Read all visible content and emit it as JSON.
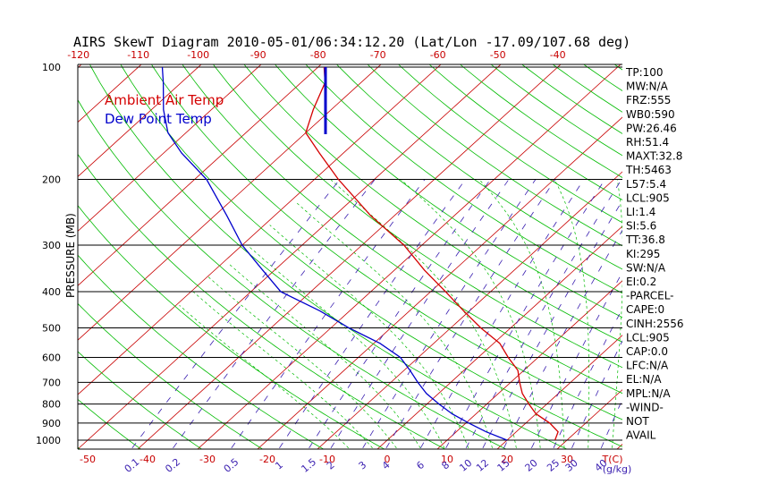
{
  "title": "AIRS SkewT Diagram 2010-05-01/06:34:12.20 (Lat/Lon -17.09/107.68 deg)",
  "colors": {
    "temp": "#d40000",
    "dew": "#0000cc",
    "isotherm": "#c80000",
    "dry_adiabat": "#00bb00",
    "moist_adiabat": "#00bb00",
    "mixing_ratio": "#3a1fb0",
    "isobar": "#000000",
    "tick_red": "#c80000"
  },
  "chart_data": {
    "type": "line",
    "subtype": "skew-t log-p",
    "ylabel": "PRESSURE (MB)",
    "y_scale": "log",
    "ylim": [
      1050,
      100
    ],
    "xlim_at_1000mb": [
      -53,
      33
    ],
    "isobars": [
      100,
      200,
      300,
      400,
      500,
      600,
      700,
      800,
      900,
      1000
    ],
    "y_tick_labels": [
      "100",
      "200",
      "300",
      "400",
      "500",
      "600",
      "700",
      "800",
      "900",
      "1000"
    ],
    "top_ticks": [
      "-120",
      "-110",
      "-100",
      "-90",
      "-80",
      "-70",
      "-60",
      "-50",
      "-40"
    ],
    "bottom_temp_ticks": [
      "-50",
      "-40",
      "-30",
      "-20",
      "-10",
      "0",
      "10",
      "20",
      "30"
    ],
    "bottom_temp_unit": "T(C)",
    "mixing_ratio_ticks": [
      "0.1",
      "0.2",
      "0.5",
      "1",
      "1.5",
      "2",
      "3",
      "4",
      "6",
      "8",
      "10",
      "12",
      "15",
      "20",
      "25",
      "30",
      "40"
    ],
    "mixing_ratio_unit": "(g/kg)",
    "legend": [
      "Ambient Air Temp",
      "Dew Point Temp"
    ],
    "series": [
      {
        "name": "Ambient Air Temp",
        "points": [
          [
            1000,
            28
          ],
          [
            950,
            27
          ],
          [
            900,
            24
          ],
          [
            850,
            20
          ],
          [
            800,
            17
          ],
          [
            750,
            14
          ],
          [
            700,
            11.5
          ],
          [
            650,
            9
          ],
          [
            600,
            5
          ],
          [
            550,
            1
          ],
          [
            500,
            -5
          ],
          [
            450,
            -11
          ],
          [
            400,
            -17.5
          ],
          [
            350,
            -25
          ],
          [
            300,
            -33
          ],
          [
            250,
            -44
          ],
          [
            200,
            -56
          ],
          [
            170,
            -64
          ],
          [
            150,
            -70
          ],
          [
            130,
            -73
          ],
          [
            110,
            -76
          ],
          [
            100,
            -79
          ]
        ]
      },
      {
        "name": "Dew Point Temp",
        "points": [
          [
            1000,
            20
          ],
          [
            950,
            15
          ],
          [
            900,
            10.5
          ],
          [
            850,
            6
          ],
          [
            800,
            2
          ],
          [
            750,
            -2
          ],
          [
            700,
            -5.5
          ],
          [
            650,
            -9
          ],
          [
            600,
            -13
          ],
          [
            550,
            -19
          ],
          [
            500,
            -27
          ],
          [
            450,
            -35
          ],
          [
            400,
            -45
          ],
          [
            350,
            -52
          ],
          [
            300,
            -60
          ],
          [
            250,
            -68
          ],
          [
            200,
            -78
          ],
          [
            170,
            -87
          ],
          [
            150,
            -93
          ],
          [
            130,
            -98
          ],
          [
            110,
            -103
          ],
          [
            100,
            -106
          ]
        ]
      }
    ]
  },
  "indices": [
    "TP:100",
    "MW:N/A",
    "FRZ:555",
    "WB0:590",
    "PW:26.46",
    "RH:51.4",
    "MAXT:32.8",
    "TH:5463",
    "L57:5.4",
    "LCL:905",
    "LI:1.4",
    "SI:5.6",
    "TT:36.8",
    "KI:295",
    "SW:N/A",
    "EI:0.2",
    "-PARCEL-",
    "CAPE:0",
    "CINH:2556",
    "LCL:905",
    "CAP:0.0",
    "LFC:N/A",
    "EL:N/A",
    "MPL:N/A",
    "-WIND-",
    "NOT",
    "AVAIL"
  ]
}
